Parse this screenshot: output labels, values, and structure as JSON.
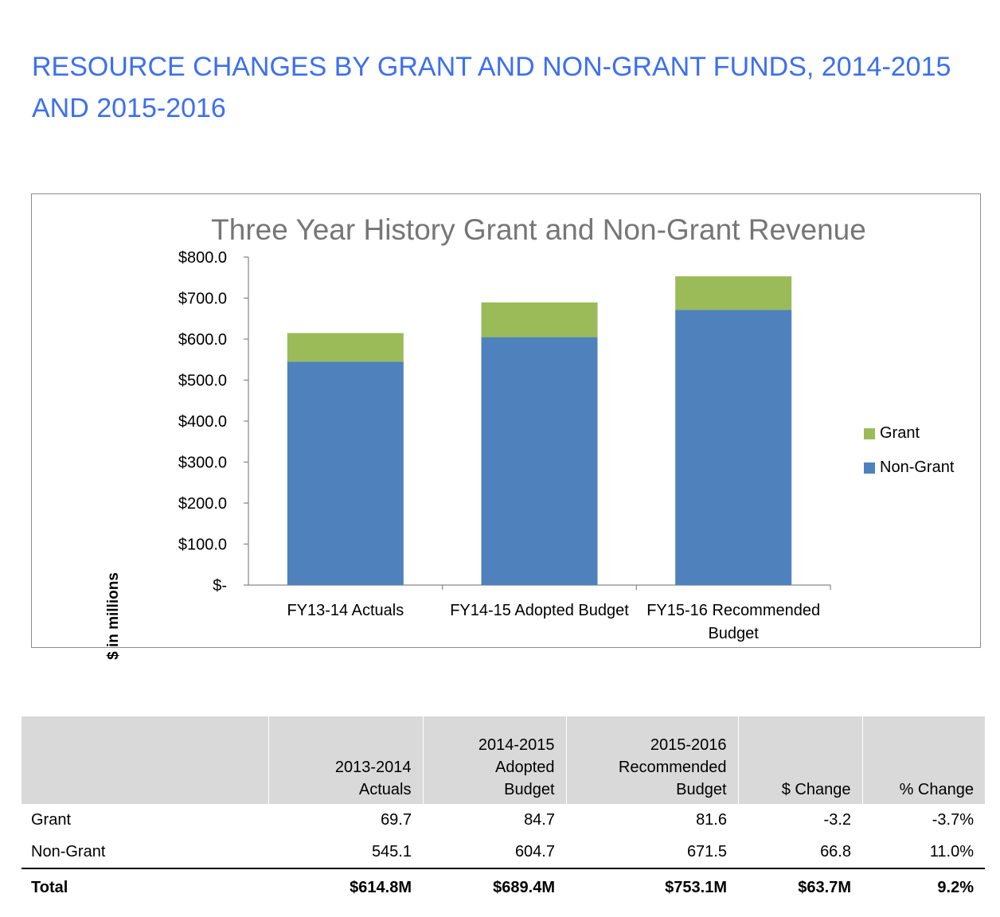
{
  "page_title": "RESOURCE CHANGES BY GRANT AND NON-GRANT FUNDS, 2014-2015 AND 2015-2016",
  "colors": {
    "title": "#3d6ff0",
    "grant": "#9bbb59",
    "non_grant": "#4f81bd",
    "header_bg": "#d9d9d9"
  },
  "chart_data": {
    "type": "bar",
    "stacked": true,
    "title": "Three Year History Grant and Non-Grant Revenue",
    "ylabel": "$ in millions",
    "xlabel": "",
    "categories": [
      "FY13-14 Actuals",
      "FY14-15 Adopted Budget",
      "FY15-16 Recommended Budget"
    ],
    "category_lines": [
      [
        "FY13-14 Actuals"
      ],
      [
        "FY14-15 Adopted Budget"
      ],
      [
        "FY15-16 Recommended",
        "Budget"
      ]
    ],
    "series": [
      {
        "name": "Non-Grant",
        "values": [
          545.1,
          604.7,
          671.5
        ],
        "color": "#4f81bd"
      },
      {
        "name": "Grant",
        "values": [
          69.7,
          84.7,
          81.6
        ],
        "color": "#9bbb59"
      }
    ],
    "ylim": [
      0,
      800
    ],
    "yticks": [
      0,
      100,
      200,
      300,
      400,
      500,
      600,
      700,
      800
    ],
    "ytick_labels": [
      "$-",
      "$100.0",
      "$200.0",
      "$300.0",
      "$400.0",
      "$500.0",
      "$600.0",
      "$700.0",
      "$800.0"
    ],
    "legend_position": "right",
    "grid": false
  },
  "table": {
    "headers": [
      [
        ""
      ],
      [
        "2013-2014",
        "Actuals"
      ],
      [
        "2014-2015",
        "Adopted",
        "Budget"
      ],
      [
        "2015-2016",
        "Recommended",
        "Budget"
      ],
      [
        "$ Change"
      ],
      [
        "% Change"
      ]
    ],
    "rows": [
      [
        "Grant",
        "69.7",
        "84.7",
        "81.6",
        "-3.2",
        "-3.7%"
      ],
      [
        "Non-Grant",
        "545.1",
        "604.7",
        "671.5",
        "66.8",
        "11.0%"
      ]
    ],
    "total": [
      "Total",
      "$614.8M",
      "$689.4M",
      "$753.1M",
      "$63.7M",
      "9.2%"
    ]
  }
}
